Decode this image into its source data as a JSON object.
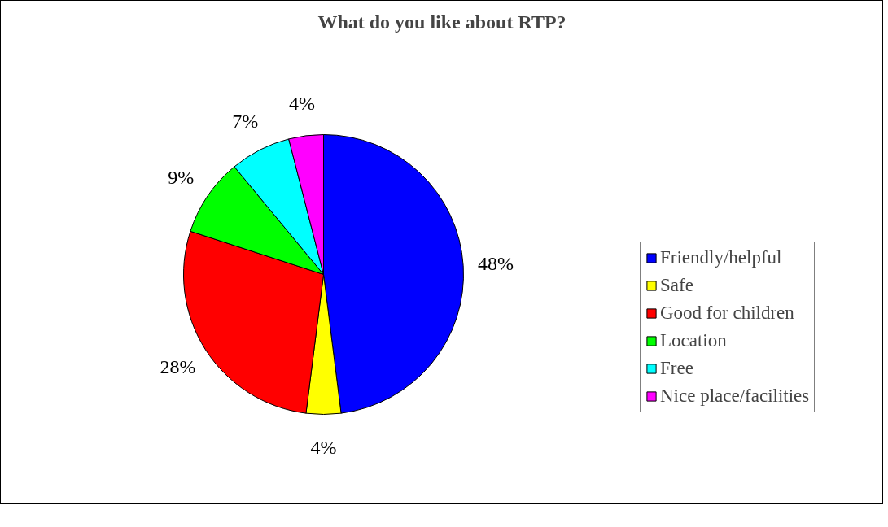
{
  "chart_data": {
    "type": "pie",
    "title": "What do you like about RTP?",
    "categories": [
      "Friendly/helpful",
      "Safe",
      "Good for children",
      "Location",
      "Free",
      "Nice place/facilities"
    ],
    "values": [
      48,
      4,
      28,
      9,
      7,
      4
    ],
    "value_labels": [
      "48%",
      "4%",
      "28%",
      "9%",
      "7%",
      "4%"
    ],
    "colors": [
      "#0000ff",
      "#ffff00",
      "#ff0000",
      "#00ff00",
      "#00ffff",
      "#ff00ff"
    ],
    "legend": "right"
  }
}
